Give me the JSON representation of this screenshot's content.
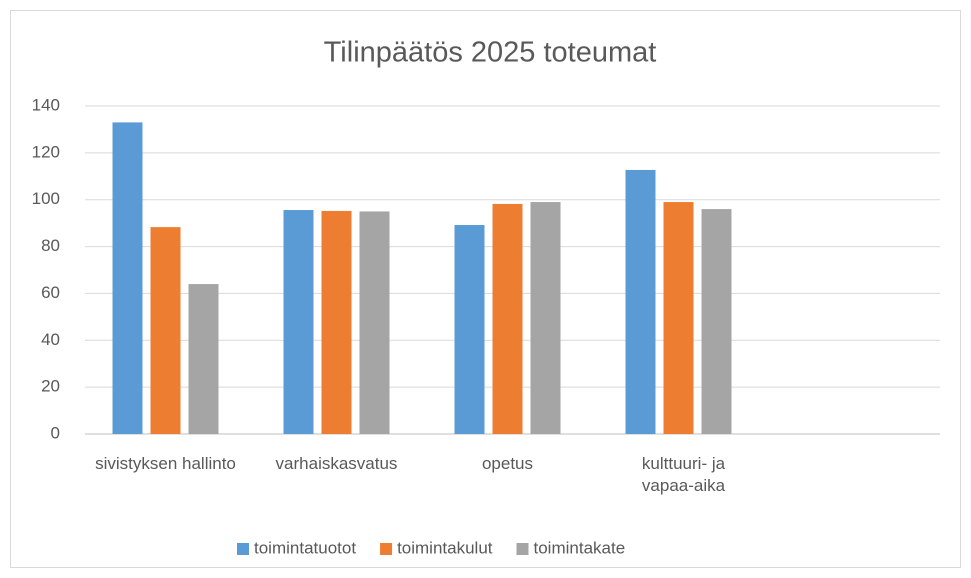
{
  "chart_data": {
    "type": "bar",
    "title": "Tilinpäätös 2025 toteumat",
    "categories": [
      "sivistyksen hallinto",
      "varhaiskasvatus",
      "opetus",
      "kulttuuri- ja vapaa-aika",
      null
    ],
    "series": [
      {
        "name": "toimintatuotot",
        "color": "#5b9bd5",
        "values": [
          133,
          95.6,
          89.2,
          112.7,
          null
        ]
      },
      {
        "name": "toimintakulut",
        "color": "#ed7d31",
        "values": [
          88.3,
          95.2,
          98.2,
          99,
          null
        ]
      },
      {
        "name": "toimintakate",
        "color": "#a5a5a5",
        "values": [
          64,
          95,
          99,
          96,
          null
        ]
      }
    ],
    "ylim": [
      0,
      140
    ],
    "yticks": [
      0,
      20,
      40,
      60,
      80,
      100,
      120,
      140
    ],
    "grid": true,
    "legend": "bottom"
  }
}
